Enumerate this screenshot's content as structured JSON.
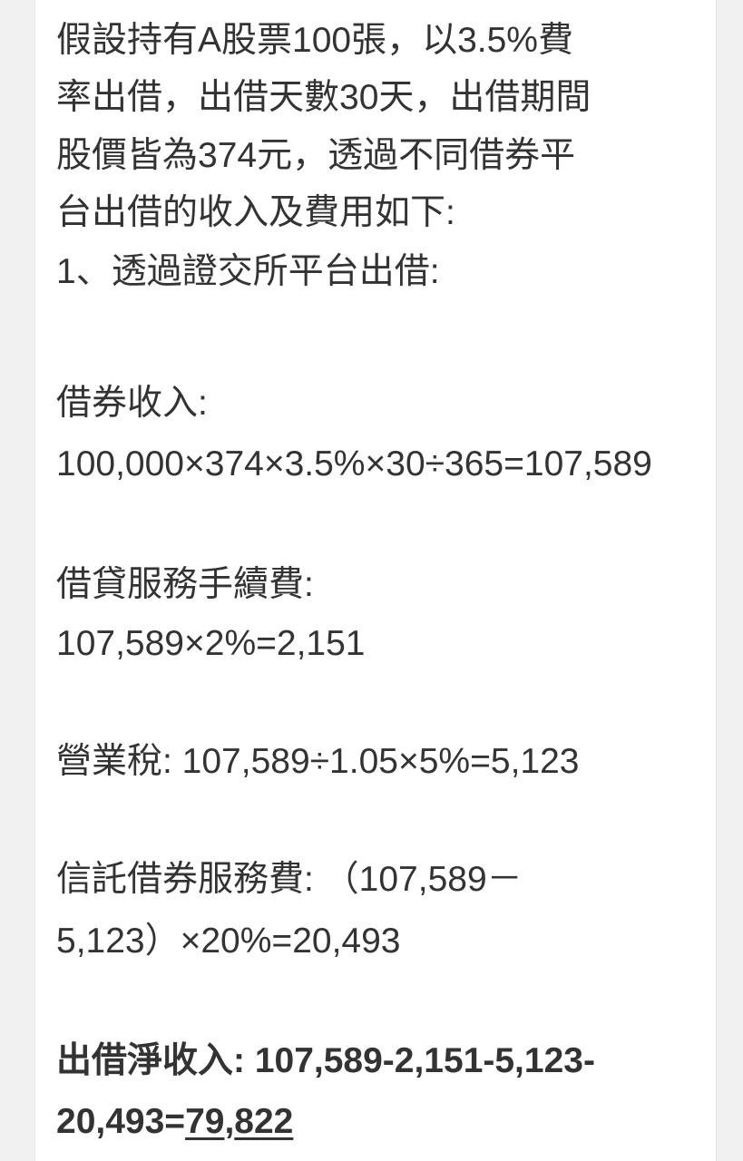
{
  "intro": [
    "假設持有A股票100張，以3.5%費",
    "率出借，出借天數30天，出借期間",
    "股價皆為374元，透過不同借券平",
    "台出借的收入及費用如下:",
    "1、透過證交所平台出借:"
  ],
  "lending_income": {
    "label": "借券收入:",
    "formula": "100,000×374×3.5%×30÷365=107,589"
  },
  "service_fee": {
    "label": "借貸服務手續費:",
    "formula": "107,589×2%=2,151"
  },
  "business_tax": {
    "text": "營業稅: 107,589÷1.05×5%=5,123"
  },
  "trust_fee": {
    "line1": "信託借券服務費: （107,589－",
    "line2": "5,123）×20%=20,493"
  },
  "net_income": {
    "line1": "出借淨收入: 107,589-2,151-5,123-",
    "line2_prefix": "20,493=",
    "result_part1": "79",
    "result_sep": ",",
    "result_part2": "822"
  }
}
